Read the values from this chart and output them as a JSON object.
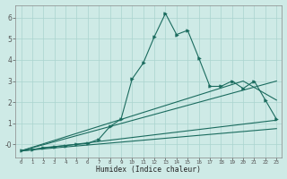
{
  "xlabel": "Humidex (Indice chaleur)",
  "bg_color": "#ceeae6",
  "grid_color": "#aad4ce",
  "line_color": "#1a6b5e",
  "xlim": [
    -0.5,
    23.5
  ],
  "ylim": [
    -0.6,
    6.6
  ],
  "xticks": [
    0,
    1,
    2,
    3,
    4,
    5,
    6,
    7,
    8,
    9,
    10,
    11,
    12,
    13,
    14,
    15,
    16,
    17,
    18,
    19,
    20,
    21,
    22,
    23
  ],
  "yticks": [
    0,
    1,
    2,
    3,
    4,
    5,
    6
  ],
  "ytick_labels": [
    "-0",
    "1",
    "2",
    "3",
    "4",
    "5",
    "6"
  ],
  "main_line_x": [
    0,
    1,
    2,
    3,
    4,
    5,
    6,
    7,
    8,
    9,
    10,
    11,
    12,
    13,
    14,
    15,
    16,
    17,
    18,
    19,
    20,
    21,
    22,
    23
  ],
  "main_line_y": [
    -0.3,
    -0.25,
    -0.15,
    -0.1,
    -0.05,
    0.0,
    0.05,
    0.25,
    0.85,
    1.2,
    3.1,
    3.85,
    5.1,
    6.2,
    5.2,
    5.4,
    4.1,
    2.75,
    2.75,
    3.0,
    2.65,
    3.0,
    2.1,
    1.2
  ],
  "trend1_x": [
    0,
    23
  ],
  "trend1_y": [
    -0.3,
    1.15
  ],
  "trend2_x": [
    0,
    23
  ],
  "trend2_y": [
    -0.3,
    3.0
  ],
  "trend3_x": [
    0,
    20,
    23
  ],
  "trend3_y": [
    -0.3,
    3.0,
    2.1
  ],
  "trend4_x": [
    0,
    23
  ],
  "trend4_y": [
    -0.3,
    0.75
  ]
}
